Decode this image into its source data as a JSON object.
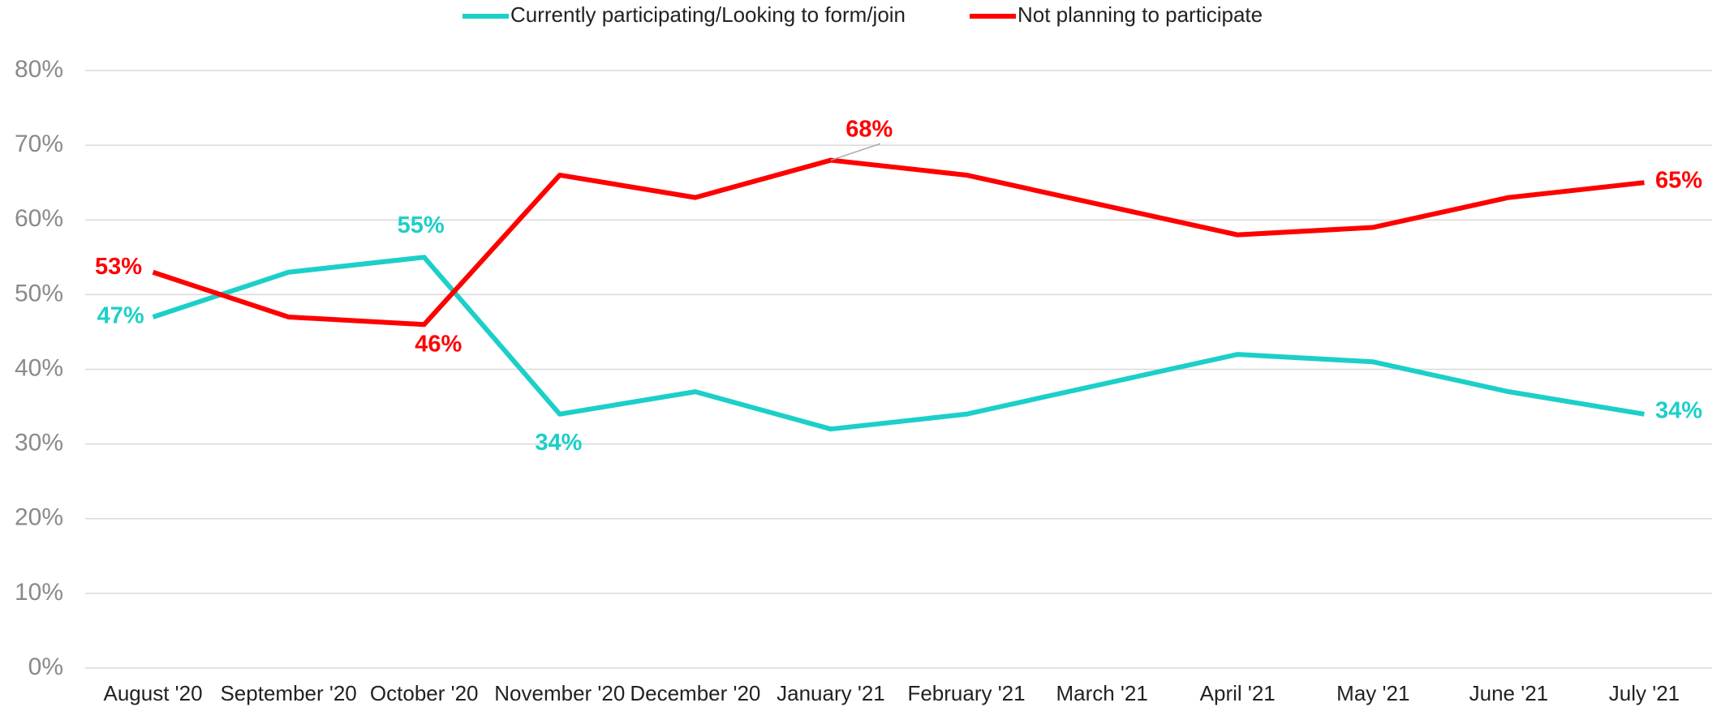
{
  "chart_data": {
    "type": "line",
    "categories": [
      "August '20",
      "September '20",
      "October '20",
      "November '20",
      "December '20",
      "January '21",
      "February '21",
      "March '21",
      "April '21",
      "May '21",
      "June '21",
      "July '21"
    ],
    "series": [
      {
        "name": "Currently participating/Looking to form/join",
        "color": "#1ccfc9",
        "values": [
          47,
          53,
          55,
          34,
          37,
          32,
          34,
          38,
          42,
          41,
          37,
          34
        ],
        "value_labels": [
          "47%",
          null,
          "55%",
          "34%",
          null,
          null,
          null,
          null,
          null,
          null,
          null,
          "34%"
        ]
      },
      {
        "name": "Not planning to participate",
        "color": "#ff0000",
        "values": [
          53,
          47,
          46,
          66,
          63,
          68,
          66,
          62,
          58,
          59,
          63,
          65
        ],
        "value_labels": [
          "53%",
          null,
          "46%",
          null,
          null,
          "68%",
          null,
          null,
          null,
          null,
          null,
          "65%"
        ]
      }
    ],
    "ylim": [
      0,
      80
    ],
    "yticks": [
      {
        "value": 0,
        "label": "0%"
      },
      {
        "value": 10,
        "label": "10%"
      },
      {
        "value": 20,
        "label": "20%"
      },
      {
        "value": 30,
        "label": "30%"
      },
      {
        "value": 40,
        "label": "40%"
      },
      {
        "value": 50,
        "label": "50%"
      },
      {
        "value": 60,
        "label": "60%"
      },
      {
        "value": 70,
        "label": "70%"
      },
      {
        "value": 80,
        "label": "80%"
      }
    ],
    "grid": true,
    "legend": "top"
  }
}
